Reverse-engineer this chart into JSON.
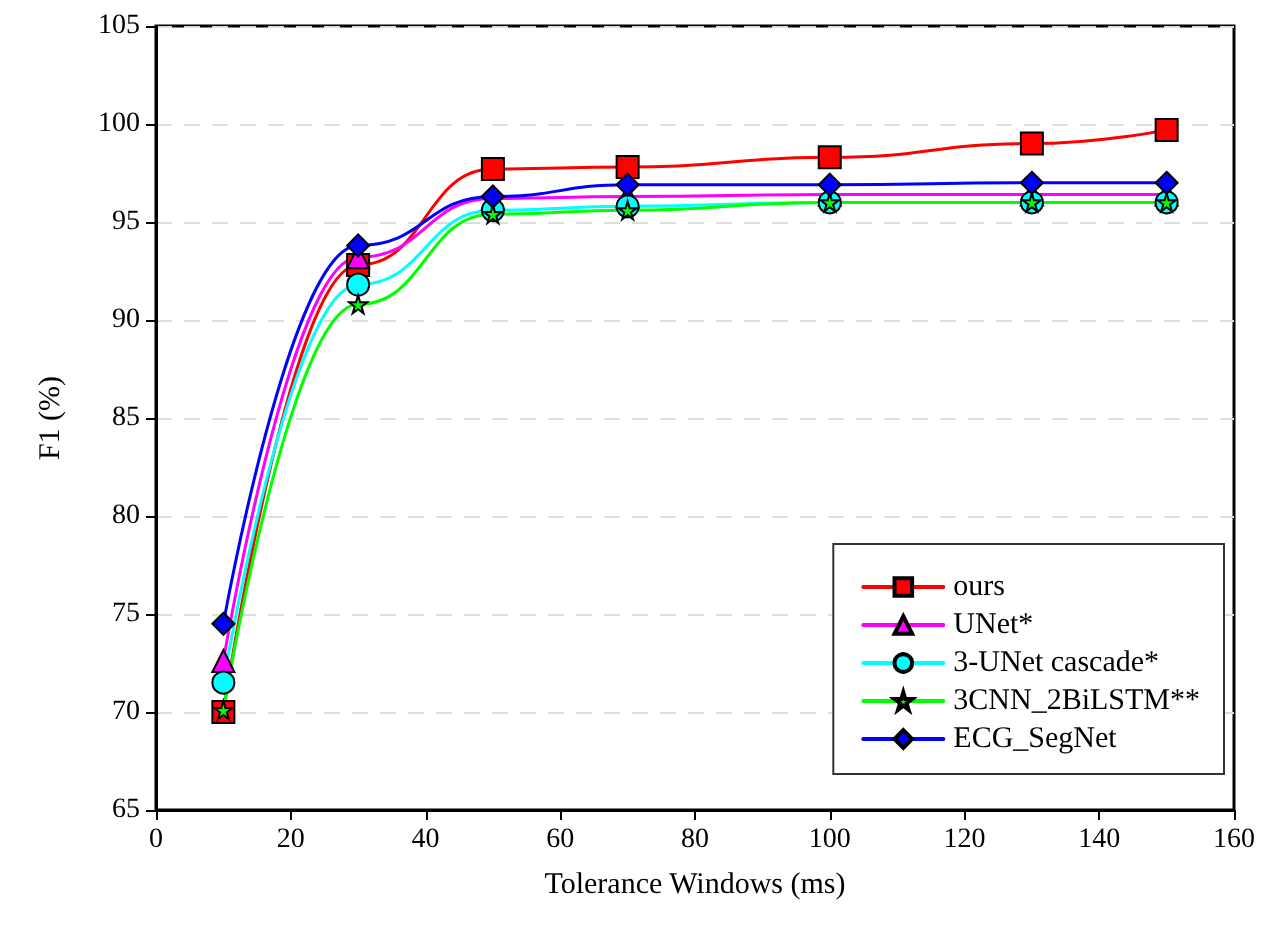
{
  "chart_data": {
    "type": "line",
    "xlabel": "Tolerance Windows (ms)",
    "ylabel": "F1 (%)",
    "x": [
      10,
      30,
      50,
      70,
      100,
      130,
      150
    ],
    "series": [
      {
        "name": "ours",
        "color": "#ff0000",
        "marker": "square",
        "values": [
          70.0,
          92.8,
          97.7,
          97.8,
          98.3,
          99.0,
          99.7
        ]
      },
      {
        "name": "UNet*",
        "color": "#ff00ff",
        "marker": "triangle",
        "values": [
          72.6,
          93.2,
          96.2,
          96.3,
          96.4,
          96.4,
          96.4
        ]
      },
      {
        "name": "3-UNet cascade*",
        "color": "#00ffff",
        "marker": "circle",
        "values": [
          71.5,
          91.8,
          95.6,
          95.8,
          96.0,
          96.0,
          96.0
        ]
      },
      {
        "name": "3CNN_2BiLSTM**",
        "color": "#00ff00",
        "marker": "star",
        "values": [
          70.1,
          90.8,
          95.4,
          95.6,
          96.0,
          96.0,
          96.0
        ]
      },
      {
        "name": "ECG_SegNet",
        "color": "#0000ff",
        "marker": "diamond",
        "values": [
          74.5,
          93.8,
          96.3,
          96.9,
          96.9,
          97.0,
          97.0
        ]
      }
    ],
    "xlim": [
      0,
      160
    ],
    "xticks": [
      0,
      20,
      40,
      60,
      80,
      100,
      120,
      140,
      160
    ],
    "ylim": [
      65,
      105
    ],
    "yticks": [
      65,
      70,
      75,
      80,
      85,
      90,
      95,
      100,
      105
    ],
    "grid": "y",
    "legend": "bottom right",
    "line_style": "solid"
  }
}
